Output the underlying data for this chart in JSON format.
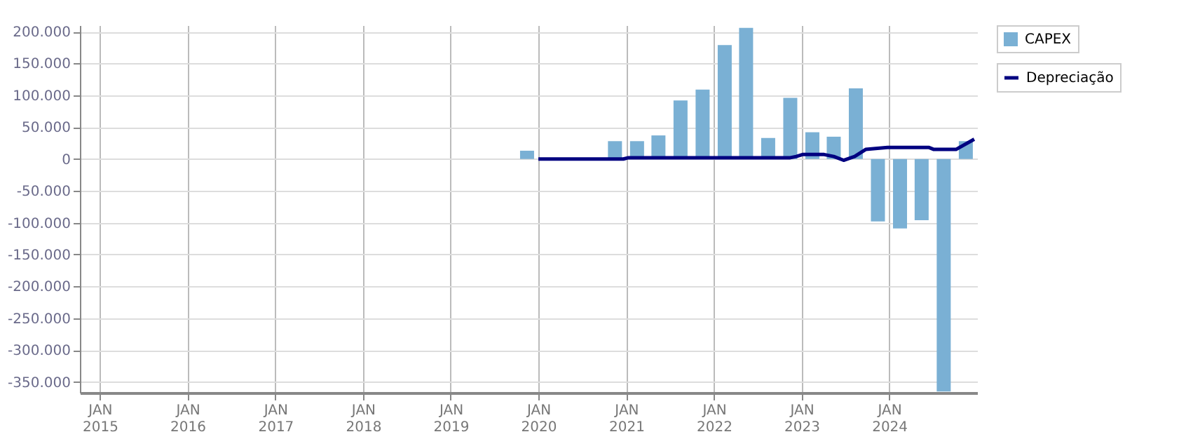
{
  "chart_data": {
    "type": "bar",
    "legend": "top right",
    "grid": true,
    "xlim": [
      "2014-10-10",
      "2025-01-01"
    ],
    "xticks": [
      {
        "value": "2015-01-01",
        "label": "JAN\n2015"
      },
      {
        "value": "2016-01-01",
        "label": "JAN\n2016"
      },
      {
        "value": "2017-01-01",
        "label": "JAN\n2017"
      },
      {
        "value": "2018-01-01",
        "label": "JAN\n2018"
      },
      {
        "value": "2019-01-01",
        "label": "JAN\n2019"
      },
      {
        "value": "2020-01-01",
        "label": "JAN\n2020"
      },
      {
        "value": "2021-01-01",
        "label": "JAN\n2021"
      },
      {
        "value": "2022-01-01",
        "label": "JAN\n2022"
      },
      {
        "value": "2023-01-01",
        "label": "JAN\n2023"
      },
      {
        "value": "2024-01-01",
        "label": "JAN\n2024"
      }
    ],
    "ylim": [
      -367000,
      210000
    ],
    "yticks": [
      {
        "value": 200000,
        "label": "200.000"
      },
      {
        "value": 150000,
        "label": "150.000"
      },
      {
        "value": 100000,
        "label": "100.000"
      },
      {
        "value": 50000,
        "label": "50.000"
      },
      0,
      {
        "value": -50000,
        "label": "-50.000"
      },
      {
        "value": -100000,
        "label": "-100.000"
      },
      {
        "value": -150000,
        "label": "-150.000"
      },
      {
        "value": -200000,
        "label": "-200.000"
      },
      {
        "value": -250000,
        "label": "-250.000"
      },
      {
        "value": -300000,
        "label": "-300.000"
      },
      {
        "value": -350000,
        "label": "-350.000"
      }
    ],
    "series": [
      {
        "name": "CAPEX",
        "color": "#7ab0d4",
        "x": [
          "2019-11-15",
          "2020-11-15",
          "2021-02-15",
          "2021-05-15",
          "2021-08-15",
          "2021-11-15",
          "2022-02-15",
          "2022-05-15",
          "2022-08-15",
          "2022-11-15",
          "2023-02-15",
          "2023-05-15",
          "2023-08-15",
          "2023-11-15",
          "2024-02-15",
          "2024-05-15",
          "2024-08-15",
          "2024-11-15"
        ],
        "values": [
          13000,
          28000,
          28000,
          37000,
          92000,
          109000,
          179000,
          206000,
          33000,
          96000,
          42000,
          35000,
          111000,
          -98000,
          -109000,
          -96000,
          -365000,
          28000
        ]
      },
      {
        "name": "Depreciação",
        "type": "line",
        "color": "#000080",
        "x": [
          "2020-01-01",
          "2020-12-20",
          "2021-01-10",
          "2022-11-15",
          "2022-12-10",
          "2023-01-05",
          "2023-04-05",
          "2023-05-15",
          "2023-06-25",
          "2023-08-10",
          "2023-09-25",
          "2023-12-25",
          "2024-06-15",
          "2024-07-05",
          "2024-10-05",
          "2024-12-20"
        ],
        "values": [
          0,
          0,
          2000,
          2000,
          4000,
          7000,
          7000,
          4000,
          -2000,
          4000,
          15000,
          18000,
          18000,
          15000,
          15000,
          31000
        ]
      }
    ]
  }
}
